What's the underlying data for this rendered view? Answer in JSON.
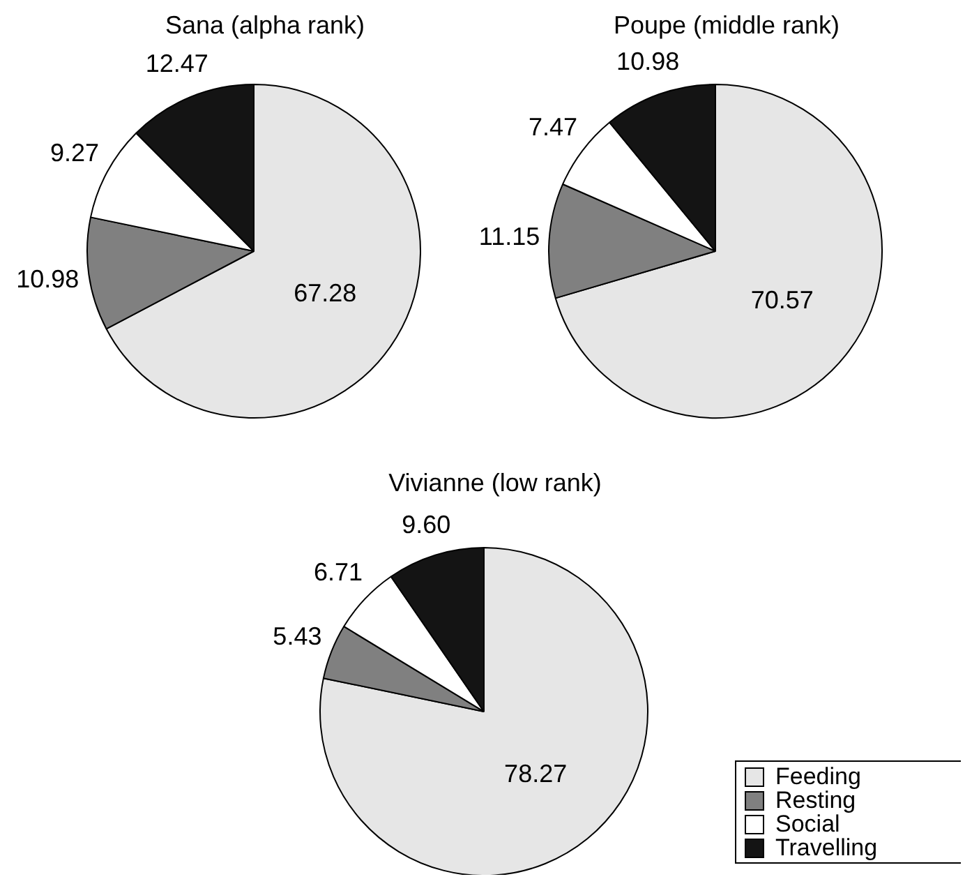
{
  "chart_data": [
    {
      "type": "pie",
      "title": "Sana (alpha rank)",
      "categories": [
        null,
        null,
        null,
        null
      ],
      "values": [
        67.28,
        10.98,
        9.27,
        12.47
      ],
      "colors": [
        "#e6e6e6",
        "#808080",
        "#ffffff",
        "#141414"
      ],
      "data_labels": true,
      "legend": false
    },
    {
      "type": "pie",
      "title": "Poupe (middle rank)",
      "categories": [
        null,
        null,
        null,
        null
      ],
      "values": [
        70.57,
        11.15,
        7.47,
        10.98
      ],
      "colors": [
        "#e6e6e6",
        "#808080",
        "#ffffff",
        "#141414"
      ],
      "data_labels": true,
      "legend": false
    },
    {
      "type": "pie",
      "title": "Vivianne (low rank)",
      "categories": [
        "Feeding",
        "Resting",
        "Social",
        "Travelling"
      ],
      "values": [
        78.27,
        5.43,
        6.71,
        9.6
      ],
      "value_labels": [
        "78.27",
        "5.43",
        "6.71",
        "9.60"
      ],
      "colors": [
        "#e6e6e6",
        "#808080",
        "#ffffff",
        "#141414"
      ],
      "legend": "bottom right"
    }
  ]
}
